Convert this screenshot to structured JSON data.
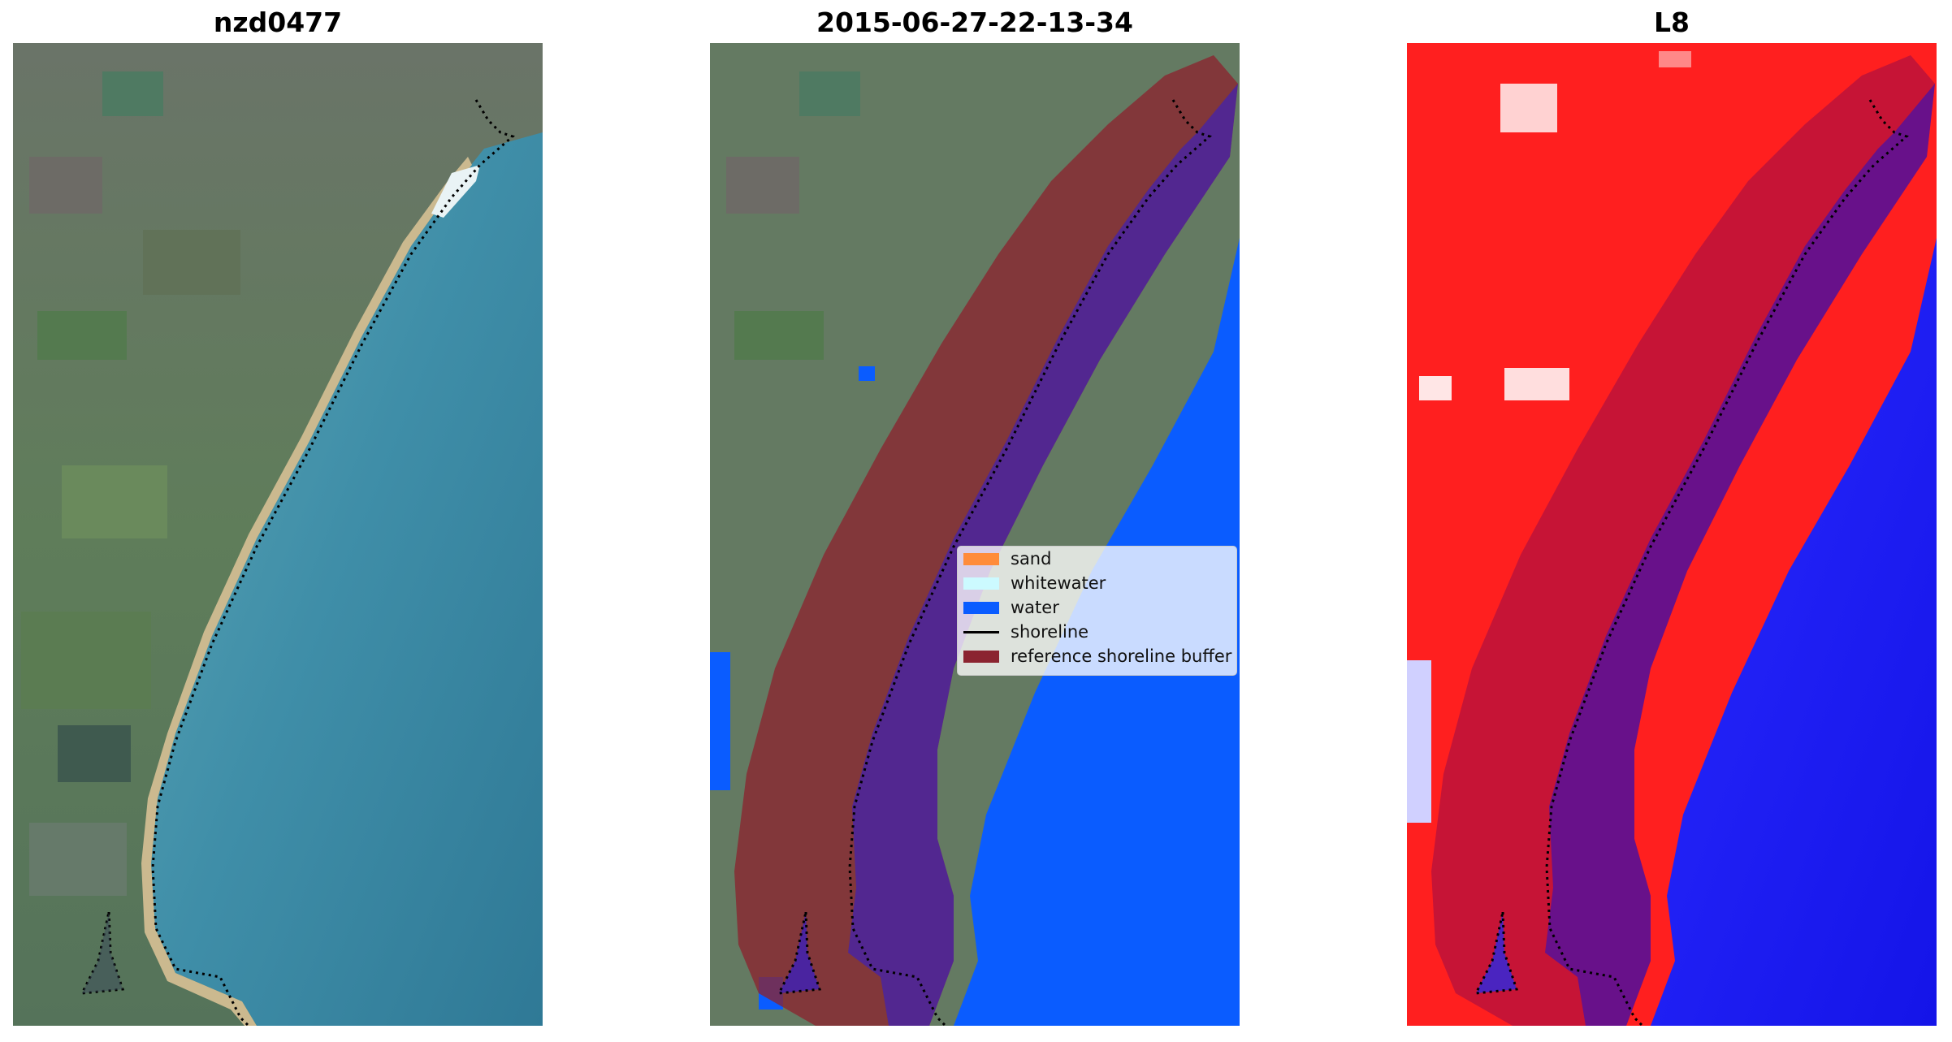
{
  "panels": [
    {
      "title": "nzd0477"
    },
    {
      "title": "2015-06-27-22-13-34"
    },
    {
      "title": "L8"
    }
  ],
  "legend": {
    "items": [
      {
        "label": "sand",
        "color": "#ff8c3a",
        "kind": "patch"
      },
      {
        "label": "whitewater",
        "color": "#ccfaff",
        "kind": "patch"
      },
      {
        "label": "water",
        "color": "#0a5cff",
        "kind": "patch"
      },
      {
        "label": "shoreline",
        "color": "#000000",
        "kind": "line"
      },
      {
        "label": "reference shoreline buffer",
        "color": "#8b2430",
        "kind": "patch"
      }
    ]
  },
  "colors": {
    "land_green": "#5e7a5c",
    "sea_teal": "#3f8fa6",
    "sand": "#c9b98f",
    "classified_water": "#0a5cff",
    "buffer": "#8b2430",
    "index_red": "#ff1a1a",
    "index_blue": "#1a1aff"
  }
}
